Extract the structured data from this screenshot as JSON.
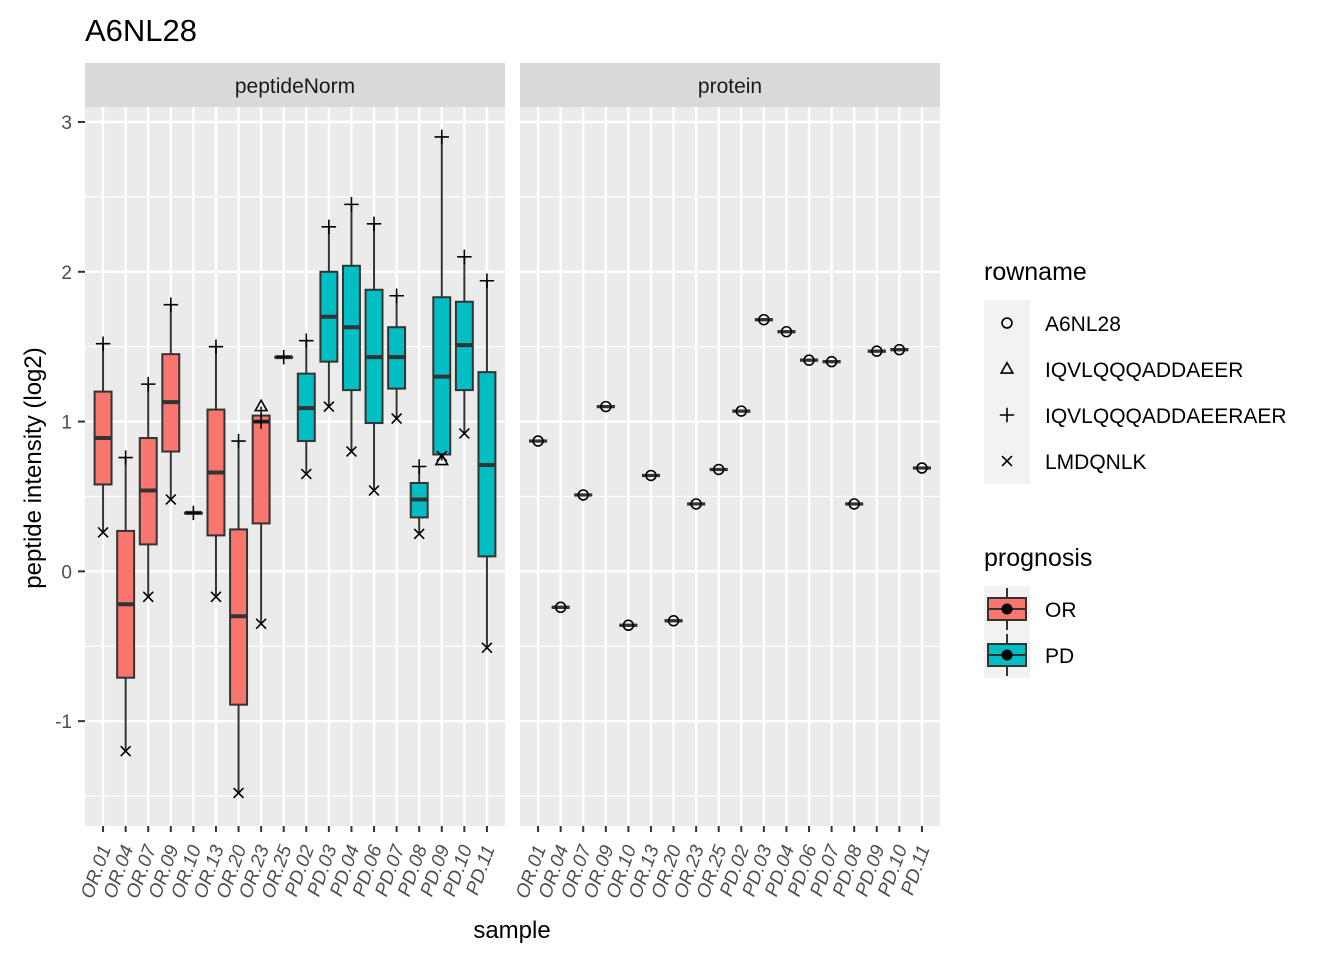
{
  "chart_data": {
    "type": "boxplot",
    "title": "A6NL28",
    "xlabel": "sample",
    "ylabel": "peptide intensity (log2)",
    "ylim": [
      -1.7,
      3.1
    ],
    "yticks": [
      "3",
      "2",
      "1",
      "0",
      "-1"
    ],
    "samples": [
      "OR.01",
      "OR.04",
      "OR.07",
      "OR.09",
      "OR.10",
      "OR.13",
      "OR.20",
      "OR.23",
      "OR.25",
      "PD.02",
      "PD.03",
      "PD.04",
      "PD.06",
      "PD.07",
      "PD.08",
      "PD.09",
      "PD.10",
      "PD.11"
    ],
    "prognosis": [
      "OR",
      "OR",
      "OR",
      "OR",
      "OR",
      "OR",
      "OR",
      "OR",
      "OR",
      "PD",
      "PD",
      "PD",
      "PD",
      "PD",
      "PD",
      "PD",
      "PD",
      "PD"
    ],
    "colors": {
      "OR": "#F8766D",
      "PD": "#00BFC4"
    },
    "panels": [
      {
        "label": "peptideNorm",
        "boxes": [
          {
            "sample": "OR.01",
            "min": 0.26,
            "q1": 0.58,
            "median": 0.89,
            "q3": 1.2,
            "max": 1.52
          },
          {
            "sample": "OR.04",
            "min": -1.2,
            "q1": -0.71,
            "median": -0.22,
            "q3": 0.27,
            "max": 0.76
          },
          {
            "sample": "OR.07",
            "min": -0.17,
            "q1": 0.18,
            "median": 0.54,
            "q3": 0.89,
            "max": 1.25
          },
          {
            "sample": "OR.09",
            "min": 0.48,
            "q1": 0.8,
            "median": 1.13,
            "q3": 1.45,
            "max": 1.78
          },
          {
            "sample": "OR.10",
            "min": 0.39,
            "q1": 0.39,
            "median": 0.39,
            "q3": 0.39,
            "max": 0.39
          },
          {
            "sample": "OR.13",
            "min": -0.17,
            "q1": 0.24,
            "median": 0.66,
            "q3": 1.08,
            "max": 1.5
          },
          {
            "sample": "OR.20",
            "min": -1.48,
            "q1": -0.89,
            "median": -0.3,
            "q3": 0.28,
            "max": 0.87
          },
          {
            "sample": "OR.23",
            "min": -0.35,
            "q1": 0.32,
            "median": 1.0,
            "q3": 1.04,
            "max": 1.1
          },
          {
            "sample": "OR.25",
            "min": 1.43,
            "q1": 1.43,
            "median": 1.43,
            "q3": 1.43,
            "max": 1.43
          },
          {
            "sample": "PD.02",
            "min": 0.65,
            "q1": 0.87,
            "median": 1.09,
            "q3": 1.32,
            "max": 1.54
          },
          {
            "sample": "PD.03",
            "min": 1.1,
            "q1": 1.4,
            "median": 1.7,
            "q3": 2.0,
            "max": 2.3
          },
          {
            "sample": "PD.04",
            "min": 0.8,
            "q1": 1.21,
            "median": 1.63,
            "q3": 2.04,
            "max": 2.45
          },
          {
            "sample": "PD.06",
            "min": 0.54,
            "q1": 0.99,
            "median": 1.43,
            "q3": 1.88,
            "max": 2.32
          },
          {
            "sample": "PD.07",
            "min": 1.02,
            "q1": 1.22,
            "median": 1.43,
            "q3": 1.63,
            "max": 1.84
          },
          {
            "sample": "PD.08",
            "min": 0.25,
            "q1": 0.36,
            "median": 0.48,
            "q3": 0.59,
            "max": 0.7
          },
          {
            "sample": "PD.09",
            "min": 0.74,
            "q1": 0.78,
            "median": 1.3,
            "q3": 1.83,
            "max": 2.9
          },
          {
            "sample": "PD.10",
            "min": 0.92,
            "q1": 1.21,
            "median": 1.51,
            "q3": 1.8,
            "max": 2.1
          },
          {
            "sample": "PD.11",
            "min": -0.51,
            "q1": 0.1,
            "median": 0.71,
            "q3": 1.33,
            "max": 1.94
          }
        ],
        "points": [
          {
            "sample": "OR.01",
            "rowname": "IQVLQQQADDAEERAER",
            "y": 1.52
          },
          {
            "sample": "OR.01",
            "rowname": "LMDQNLK",
            "y": 0.26
          },
          {
            "sample": "OR.04",
            "rowname": "IQVLQQQADDAEERAER",
            "y": 0.76
          },
          {
            "sample": "OR.04",
            "rowname": "LMDQNLK",
            "y": -1.2
          },
          {
            "sample": "OR.07",
            "rowname": "IQVLQQQADDAEERAER",
            "y": 1.25
          },
          {
            "sample": "OR.07",
            "rowname": "LMDQNLK",
            "y": -0.17
          },
          {
            "sample": "OR.09",
            "rowname": "IQVLQQQADDAEERAER",
            "y": 1.78
          },
          {
            "sample": "OR.09",
            "rowname": "LMDQNLK",
            "y": 0.48
          },
          {
            "sample": "OR.10",
            "rowname": "IQVLQQQADDAEERAER",
            "y": 0.39
          },
          {
            "sample": "OR.13",
            "rowname": "IQVLQQQADDAEERAER",
            "y": 1.5
          },
          {
            "sample": "OR.13",
            "rowname": "LMDQNLK",
            "y": -0.17
          },
          {
            "sample": "OR.20",
            "rowname": "IQVLQQQADDAEERAER",
            "y": 0.87
          },
          {
            "sample": "OR.20",
            "rowname": "LMDQNLK",
            "y": -1.48
          },
          {
            "sample": "OR.23",
            "rowname": "IQVLQQQADDAEER",
            "y": 1.1
          },
          {
            "sample": "OR.23",
            "rowname": "IQVLQQQADDAEERAER",
            "y": 1.0
          },
          {
            "sample": "OR.23",
            "rowname": "LMDQNLK",
            "y": -0.35
          },
          {
            "sample": "OR.25",
            "rowname": "IQVLQQQADDAEERAER",
            "y": 1.43
          },
          {
            "sample": "PD.02",
            "rowname": "IQVLQQQADDAEERAER",
            "y": 1.54
          },
          {
            "sample": "PD.02",
            "rowname": "LMDQNLK",
            "y": 0.65
          },
          {
            "sample": "PD.03",
            "rowname": "IQVLQQQADDAEERAER",
            "y": 2.3
          },
          {
            "sample": "PD.03",
            "rowname": "LMDQNLK",
            "y": 1.1
          },
          {
            "sample": "PD.04",
            "rowname": "IQVLQQQADDAEERAER",
            "y": 2.45
          },
          {
            "sample": "PD.04",
            "rowname": "LMDQNLK",
            "y": 0.8
          },
          {
            "sample": "PD.06",
            "rowname": "IQVLQQQADDAEERAER",
            "y": 2.32
          },
          {
            "sample": "PD.06",
            "rowname": "LMDQNLK",
            "y": 0.54
          },
          {
            "sample": "PD.07",
            "rowname": "IQVLQQQADDAEERAER",
            "y": 1.84
          },
          {
            "sample": "PD.07",
            "rowname": "LMDQNLK",
            "y": 1.02
          },
          {
            "sample": "PD.08",
            "rowname": "IQVLQQQADDAEERAER",
            "y": 0.7
          },
          {
            "sample": "PD.08",
            "rowname": "LMDQNLK",
            "y": 0.25
          },
          {
            "sample": "PD.09",
            "rowname": "IQVLQQQADDAEERAER",
            "y": 2.9
          },
          {
            "sample": "PD.09",
            "rowname": "IQVLQQQADDAEER",
            "y": 0.74
          },
          {
            "sample": "PD.09",
            "rowname": "LMDQNLK",
            "y": 0.77
          },
          {
            "sample": "PD.10",
            "rowname": "IQVLQQQADDAEERAER",
            "y": 2.1
          },
          {
            "sample": "PD.10",
            "rowname": "LMDQNLK",
            "y": 0.92
          },
          {
            "sample": "PD.11",
            "rowname": "IQVLQQQADDAEERAER",
            "y": 1.94
          },
          {
            "sample": "PD.11",
            "rowname": "LMDQNLK",
            "y": -0.51
          }
        ]
      },
      {
        "label": "protein",
        "boxes": [
          {
            "sample": "OR.01",
            "value": 0.87
          },
          {
            "sample": "OR.04",
            "value": -0.24
          },
          {
            "sample": "OR.07",
            "value": 0.51
          },
          {
            "sample": "OR.09",
            "value": 1.1
          },
          {
            "sample": "OR.10",
            "value": -0.36
          },
          {
            "sample": "OR.13",
            "value": 0.64
          },
          {
            "sample": "OR.20",
            "value": -0.33
          },
          {
            "sample": "OR.23",
            "value": 0.45
          },
          {
            "sample": "OR.25",
            "value": 0.68
          },
          {
            "sample": "PD.02",
            "value": 1.07
          },
          {
            "sample": "PD.03",
            "value": 1.68
          },
          {
            "sample": "PD.04",
            "value": 1.6
          },
          {
            "sample": "PD.06",
            "value": 1.41
          },
          {
            "sample": "PD.07",
            "value": 1.4
          },
          {
            "sample": "PD.08",
            "value": 0.45
          },
          {
            "sample": "PD.09",
            "value": 1.47
          },
          {
            "sample": "PD.10",
            "value": 1.48
          },
          {
            "sample": "PD.11",
            "value": 0.69
          }
        ],
        "point_rowname": "A6NL28"
      }
    ],
    "legends": [
      {
        "title": "rowname",
        "entries": [
          {
            "label": "A6NL28",
            "shape": "circle"
          },
          {
            "label": "IQVLQQQADDAEER",
            "shape": "triangle"
          },
          {
            "label": "IQVLQQQADDAEERAER",
            "shape": "plus"
          },
          {
            "label": "LMDQNLK",
            "shape": "cross"
          }
        ]
      },
      {
        "title": "prognosis",
        "entries": [
          {
            "label": "OR",
            "color": "#F8766D"
          },
          {
            "label": "PD",
            "color": "#00BFC4"
          }
        ]
      }
    ]
  }
}
